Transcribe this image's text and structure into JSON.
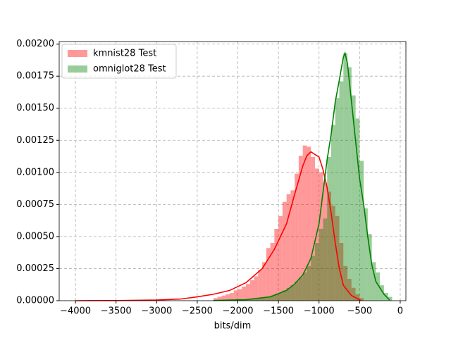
{
  "chart_data": {
    "type": "histogram",
    "xlabel": "bits/dim",
    "xlim": [
      -4200,
      70
    ],
    "ylim": [
      0,
      0.00202
    ],
    "grid": true,
    "legend": "upper left",
    "xticks": [
      {
        "value": -4000,
        "label": "−4000"
      },
      {
        "value": -3500,
        "label": "−3500"
      },
      {
        "value": -3000,
        "label": "−3000"
      },
      {
        "value": -2500,
        "label": "−2500"
      },
      {
        "value": -2000,
        "label": "−2000"
      },
      {
        "value": -1500,
        "label": "−1500"
      },
      {
        "value": -1000,
        "label": "−1000"
      },
      {
        "value": -500,
        "label": "−500"
      },
      0
    ],
    "yticks": [
      {
        "value": 0,
        "label": "0.00000"
      },
      {
        "value": 0.00025,
        "label": "0.00025"
      },
      {
        "value": 0.0005,
        "label": "0.00050"
      },
      {
        "value": 0.00075,
        "label": "0.00075"
      },
      {
        "value": 0.001,
        "label": "0.00100"
      },
      {
        "value": 0.00125,
        "label": "0.00125"
      },
      {
        "value": 0.0015,
        "label": "0.00150"
      },
      {
        "value": 0.00175,
        "label": "0.00175"
      },
      {
        "value": 0.002,
        "label": "0.00200"
      }
    ],
    "series": [
      {
        "name": "kmnist28 Test",
        "color": "red",
        "bins": [
          -2300,
          -2250,
          -2200,
          -2150,
          -2100,
          -2050,
          -2000,
          -1950,
          -1900,
          -1850,
          -1800,
          -1750,
          -1700,
          -1650,
          -1600,
          -1550,
          -1500,
          -1450,
          -1400,
          -1350,
          -1300,
          -1250,
          -1200,
          -1150,
          -1100,
          -1050,
          -1000,
          -950,
          -900,
          -850,
          -800,
          -750,
          -700,
          -650,
          -600,
          -550,
          -500,
          -450
        ],
        "values": [
          2e-05,
          3e-05,
          4e-05,
          5e-05,
          6e-05,
          8e-05,
          9e-05,
          0.00011,
          0.00013,
          0.00016,
          0.00019,
          0.00024,
          0.0003,
          0.00041,
          0.00045,
          0.00056,
          0.00066,
          0.00077,
          0.00083,
          0.00086,
          0.00099,
          0.00113,
          0.00121,
          0.0012,
          0.00112,
          0.00103,
          0.001,
          0.00092,
          0.00085,
          0.00074,
          0.00066,
          0.00045,
          0.00027,
          0.00017,
          0.0001,
          5e-05,
          2e-05
        ],
        "kde": {
          "x": [
            -4000,
            -3500,
            -3000,
            -2700,
            -2500,
            -2300,
            -2100,
            -1900,
            -1700,
            -1550,
            -1400,
            -1300,
            -1200,
            -1150,
            -1100,
            -1000,
            -950,
            -900,
            -850,
            -800,
            -750,
            -700,
            -600,
            -480
          ],
          "values": [
            0,
            1e-06,
            5e-06,
            1.3e-05,
            3e-05,
            5e-05,
            8e-05,
            0.00014,
            0.00025,
            0.0004,
            0.0006,
            0.00083,
            0.00105,
            0.00113,
            0.00116,
            0.00112,
            0.00102,
            0.00088,
            0.00068,
            0.00045,
            0.00025,
            0.00012,
            4e-05,
            0
          ]
        }
      },
      {
        "name": "omniglot28 Test",
        "color": "green",
        "bins": [
          -2300,
          -2250,
          -2200,
          -2150,
          -2100,
          -2050,
          -2000,
          -1950,
          -1900,
          -1850,
          -1800,
          -1750,
          -1700,
          -1650,
          -1600,
          -1550,
          -1500,
          -1450,
          -1400,
          -1350,
          -1300,
          -1250,
          -1200,
          -1150,
          -1100,
          -1050,
          -1000,
          -950,
          -900,
          -850,
          -800,
          -750,
          -700,
          -650,
          -600,
          -550,
          -500,
          -450,
          -400,
          -350,
          -300,
          -250,
          -200,
          -150,
          -100
        ],
        "values": [
          2e-06,
          2e-06,
          3e-06,
          3e-06,
          4e-06,
          5e-06,
          6e-06,
          8e-06,
          1e-05,
          1.2e-05,
          1.5e-05,
          2e-05,
          2.5e-05,
          3e-05,
          4e-05,
          5e-05,
          6e-05,
          8e-05,
          0.0001,
          0.00012,
          0.00015,
          0.00018,
          0.00022,
          0.00027,
          0.00035,
          0.00045,
          0.00056,
          0.00064,
          0.00112,
          0.00137,
          0.00158,
          0.00171,
          0.00193,
          0.00182,
          0.0016,
          0.00142,
          0.00109,
          0.00072,
          0.00052,
          0.0003,
          0.00022,
          0.00012,
          6e-05,
          3e-05
        ],
        "kde": {
          "x": [
            -2300,
            -1900,
            -1600,
            -1400,
            -1300,
            -1200,
            -1100,
            -1000,
            -950,
            -900,
            -850,
            -800,
            -750,
            -700,
            -680,
            -650,
            -600,
            -550,
            -500,
            -450,
            -400,
            -350,
            -300,
            -250,
            -200,
            -130
          ],
          "values": [
            2e-06,
            8e-06,
            3e-05,
            8e-05,
            0.00013,
            0.0002,
            0.00033,
            0.0006,
            0.00085,
            0.0011,
            0.0013,
            0.00155,
            0.00172,
            0.0019,
            0.00193,
            0.00185,
            0.00155,
            0.00125,
            0.00095,
            0.00075,
            0.0005,
            0.00028,
            0.00015,
            0.0001,
            5e-05,
            5e-06
          ]
        }
      }
    ]
  }
}
